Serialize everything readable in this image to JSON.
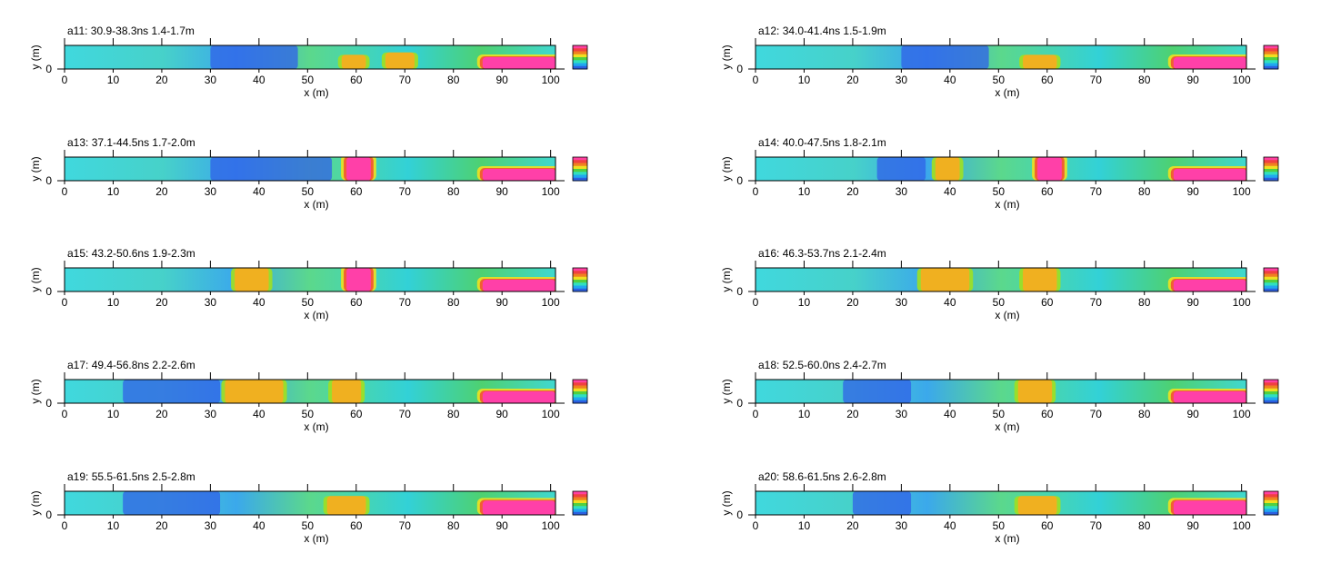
{
  "chart_data": [
    {
      "type": "heatmap",
      "panel": "a11",
      "title": "a11:  30.9-38.3ns  1.4-1.7m",
      "xlabel": "x (m)",
      "ylabel": "y (m)",
      "xlim": [
        0,
        101
      ],
      "ylim": [
        0,
        1
      ],
      "x_ticks": [
        0,
        10,
        20,
        30,
        40,
        50,
        60,
        70,
        80,
        90,
        100
      ],
      "y_ticks": [
        0
      ],
      "features": [
        {
          "x": [
            86,
            101
          ],
          "y": [
            0,
            0.5
          ],
          "level": "high"
        },
        {
          "x": [
            57,
            62
          ],
          "y": [
            0,
            0.6
          ],
          "level": "medium"
        },
        {
          "x": [
            66,
            72
          ],
          "y": [
            0,
            0.7
          ],
          "level": "medium"
        },
        {
          "x": [
            30,
            48
          ],
          "y": [
            0,
            1
          ],
          "level": "low"
        }
      ]
    },
    {
      "type": "heatmap",
      "panel": "a12",
      "title": "a12:  34.0-41.4ns  1.5-1.9m",
      "xlabel": "x (m)",
      "ylabel": "y (m)",
      "xlim": [
        0,
        101
      ],
      "ylim": [
        0,
        1
      ],
      "x_ticks": [
        0,
        10,
        20,
        30,
        40,
        50,
        60,
        70,
        80,
        90,
        100
      ],
      "y_ticks": [
        0
      ],
      "features": [
        {
          "x": [
            86,
            101
          ],
          "y": [
            0,
            0.5
          ],
          "level": "high"
        },
        {
          "x": [
            55,
            62
          ],
          "y": [
            0,
            0.6
          ],
          "level": "medium"
        },
        {
          "x": [
            30,
            48
          ],
          "y": [
            0,
            1
          ],
          "level": "low"
        }
      ]
    },
    {
      "type": "heatmap",
      "panel": "a13",
      "title": "a13:  37.1-44.5ns  1.7-2.0m",
      "xlabel": "x (m)",
      "ylabel": "y (m)",
      "xlim": [
        0,
        101
      ],
      "ylim": [
        0,
        1
      ],
      "x_ticks": [
        0,
        10,
        20,
        30,
        40,
        50,
        60,
        70,
        80,
        90,
        100
      ],
      "y_ticks": [
        0
      ],
      "features": [
        {
          "x": [
            58,
            63
          ],
          "y": [
            0,
            1
          ],
          "level": "high"
        },
        {
          "x": [
            86,
            101
          ],
          "y": [
            0,
            0.5
          ],
          "level": "high"
        },
        {
          "x": [
            30,
            55
          ],
          "y": [
            0,
            1
          ],
          "level": "low"
        }
      ]
    },
    {
      "type": "heatmap",
      "panel": "a14",
      "title": "a14:  40.0-47.5ns  1.8-2.1m",
      "xlabel": "x (m)",
      "ylabel": "y (m)",
      "xlim": [
        0,
        101
      ],
      "ylim": [
        0,
        1
      ],
      "x_ticks": [
        0,
        10,
        20,
        30,
        40,
        50,
        60,
        70,
        80,
        90,
        100
      ],
      "y_ticks": [
        0
      ],
      "features": [
        {
          "x": [
            58,
            63
          ],
          "y": [
            0,
            1
          ],
          "level": "high"
        },
        {
          "x": [
            37,
            42
          ],
          "y": [
            0,
            1
          ],
          "level": "medium"
        },
        {
          "x": [
            86,
            101
          ],
          "y": [
            0,
            0.5
          ],
          "level": "high"
        },
        {
          "x": [
            25,
            35
          ],
          "y": [
            0,
            1
          ],
          "level": "low"
        }
      ]
    },
    {
      "type": "heatmap",
      "panel": "a15",
      "title": "a15:  43.2-50.6ns  1.9-2.3m",
      "xlabel": "x (m)",
      "ylabel": "y (m)",
      "xlim": [
        0,
        101
      ],
      "ylim": [
        0,
        1
      ],
      "x_ticks": [
        0,
        10,
        20,
        30,
        40,
        50,
        60,
        70,
        80,
        90,
        100
      ],
      "y_ticks": [
        0
      ],
      "features": [
        {
          "x": [
            58,
            63
          ],
          "y": [
            0,
            1
          ],
          "level": "high"
        },
        {
          "x": [
            35,
            42
          ],
          "y": [
            0,
            1
          ],
          "level": "medium"
        },
        {
          "x": [
            86,
            101
          ],
          "y": [
            0,
            0.5
          ],
          "level": "high"
        }
      ]
    },
    {
      "type": "heatmap",
      "panel": "a16",
      "title": "a16:  46.3-53.7ns  2.1-2.4m",
      "xlabel": "x (m)",
      "ylabel": "y (m)",
      "xlim": [
        0,
        101
      ],
      "ylim": [
        0,
        1
      ],
      "x_ticks": [
        0,
        10,
        20,
        30,
        40,
        50,
        60,
        70,
        80,
        90,
        100
      ],
      "y_ticks": [
        0
      ],
      "features": [
        {
          "x": [
            34,
            44
          ],
          "y": [
            0,
            1
          ],
          "level": "medium"
        },
        {
          "x": [
            55,
            62
          ],
          "y": [
            0,
            1
          ],
          "level": "medium"
        },
        {
          "x": [
            86,
            101
          ],
          "y": [
            0,
            0.5
          ],
          "level": "high"
        }
      ]
    },
    {
      "type": "heatmap",
      "panel": "a17",
      "title": "a17:  49.4-56.8ns  2.2-2.6m",
      "xlabel": "x (m)",
      "ylabel": "y (m)",
      "xlim": [
        0,
        101
      ],
      "ylim": [
        0,
        1
      ],
      "x_ticks": [
        0,
        10,
        20,
        30,
        40,
        50,
        60,
        70,
        80,
        90,
        100
      ],
      "y_ticks": [
        0
      ],
      "features": [
        {
          "x": [
            55,
            61
          ],
          "y": [
            0,
            1
          ],
          "level": "medium"
        },
        {
          "x": [
            33,
            45
          ],
          "y": [
            0,
            1
          ],
          "level": "medium"
        },
        {
          "x": [
            86,
            101
          ],
          "y": [
            0,
            0.5
          ],
          "level": "high"
        },
        {
          "x": [
            12,
            32
          ],
          "y": [
            0,
            1
          ],
          "level": "low"
        }
      ]
    },
    {
      "type": "heatmap",
      "panel": "a18",
      "title": "a18:  52.5-60.0ns  2.4-2.7m",
      "xlabel": "x (m)",
      "ylabel": "y (m)",
      "xlim": [
        0,
        101
      ],
      "ylim": [
        0,
        1
      ],
      "x_ticks": [
        0,
        10,
        20,
        30,
        40,
        50,
        60,
        70,
        80,
        90,
        100
      ],
      "y_ticks": [
        0
      ],
      "features": [
        {
          "x": [
            54,
            61
          ],
          "y": [
            0,
            1
          ],
          "level": "medium"
        },
        {
          "x": [
            86,
            101
          ],
          "y": [
            0,
            0.5
          ],
          "level": "high"
        },
        {
          "x": [
            18,
            32
          ],
          "y": [
            0,
            1
          ],
          "level": "low"
        }
      ]
    },
    {
      "type": "heatmap",
      "panel": "a19",
      "title": "a19:  55.5-61.5ns  2.5-2.8m",
      "xlabel": "x (m)",
      "ylabel": "y (m)",
      "xlim": [
        0,
        101
      ],
      "ylim": [
        0,
        1
      ],
      "x_ticks": [
        0,
        10,
        20,
        30,
        40,
        50,
        60,
        70,
        80,
        90,
        100
      ],
      "y_ticks": [
        0
      ],
      "features": [
        {
          "x": [
            86,
            101
          ],
          "y": [
            0,
            0.6
          ],
          "level": "high"
        },
        {
          "x": [
            54,
            62
          ],
          "y": [
            0,
            0.8
          ],
          "level": "medium"
        },
        {
          "x": [
            12,
            32
          ],
          "y": [
            0,
            1
          ],
          "level": "low"
        }
      ]
    },
    {
      "type": "heatmap",
      "panel": "a20",
      "title": "a20:  58.6-61.5ns  2.6-2.8m",
      "xlabel": "x (m)",
      "ylabel": "y (m)",
      "xlim": [
        0,
        101
      ],
      "ylim": [
        0,
        1
      ],
      "x_ticks": [
        0,
        10,
        20,
        30,
        40,
        50,
        60,
        70,
        80,
        90,
        100
      ],
      "y_ticks": [
        0
      ],
      "features": [
        {
          "x": [
            86,
            101
          ],
          "y": [
            0,
            0.6
          ],
          "level": "high"
        },
        {
          "x": [
            54,
            62
          ],
          "y": [
            0,
            0.8
          ],
          "level": "medium"
        },
        {
          "x": [
            20,
            32
          ],
          "y": [
            0,
            1
          ],
          "level": "low"
        }
      ]
    }
  ],
  "colors": {
    "colorbar": [
      "#2b5fe0",
      "#20a8f0",
      "#30e0c0",
      "#50d040",
      "#f0e020",
      "#f08020",
      "#f04040",
      "#ff40a0"
    ],
    "field_background": "#40d8d0",
    "field_low": "#3060e8",
    "field_medium": "#f0b020",
    "field_high": "#ff40a8"
  }
}
